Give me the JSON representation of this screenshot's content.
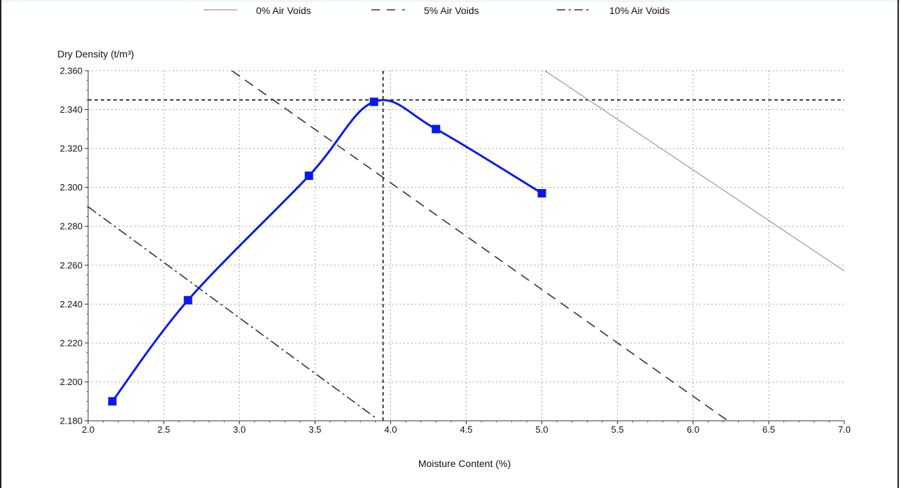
{
  "chart_data": {
    "type": "line",
    "title": "",
    "xlabel": "Moisture Content (%)",
    "ylabel": "Dry Density (t/m³)",
    "xlim": [
      2.0,
      7.0
    ],
    "ylim": [
      2.18,
      2.36
    ],
    "x_ticks": [
      "2.0",
      "2.5",
      "3.0",
      "3.5",
      "4.0",
      "4.5",
      "5.0",
      "5.5",
      "6.0",
      "6.5",
      "7.0"
    ],
    "y_ticks": [
      "2.180",
      "2.200",
      "2.220",
      "2.240",
      "2.260",
      "2.280",
      "2.300",
      "2.320",
      "2.340",
      "2.360"
    ],
    "grid": true,
    "legend_position": "top",
    "legend": [
      {
        "label": "0% Air Voids",
        "style": "solid"
      },
      {
        "label": "5% Air Voids",
        "style": "dashed"
      },
      {
        "label": "10% Air Voids",
        "style": "dashdot"
      }
    ],
    "series": [
      {
        "x": [
          2.16,
          2.66,
          3.46,
          3.89,
          4.3,
          5.0
        ],
        "y": [
          2.19,
          2.242,
          2.306,
          2.344,
          2.33,
          2.297
        ],
        "color": "#0a18f0",
        "markers": true
      },
      {
        "name": "0% Air Voids",
        "x": [
          5.02,
          7.0
        ],
        "y": [
          2.36,
          2.257
        ],
        "color": "#999999",
        "style": "solid"
      },
      {
        "name": "5% Air Voids",
        "x": [
          2.95,
          6.23
        ],
        "y": [
          2.36,
          2.18
        ],
        "color": "#333333",
        "style": "dashed"
      },
      {
        "name": "10% Air Voids",
        "x": [
          2.0,
          3.91
        ],
        "y": [
          2.29,
          2.181
        ],
        "color": "#333333",
        "style": "dashdot"
      }
    ],
    "optimum": {
      "moisture": 3.95,
      "max_dry_density": 2.345
    }
  }
}
